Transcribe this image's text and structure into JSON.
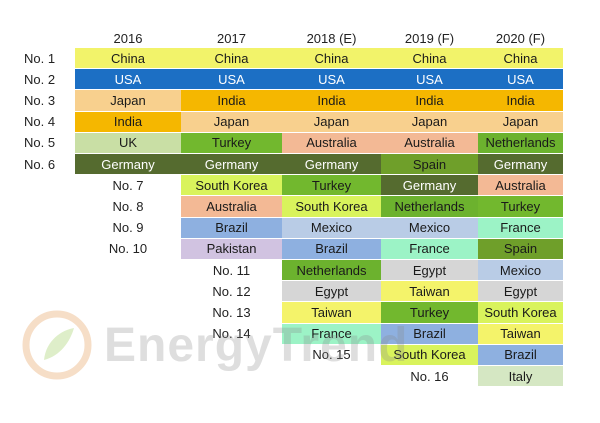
{
  "years": [
    "2016",
    "2017",
    "2018 (E)",
    "2019 (F)",
    "2020 (F)"
  ],
  "ranks": [
    "No. 1",
    "No. 2",
    "No. 3",
    "No. 4",
    "No. 5",
    "No. 6",
    "No. 7",
    "No. 8",
    "No. 9",
    "No. 10",
    "No. 11",
    "No. 12",
    "No. 13",
    "No. 14",
    "No. 15",
    "No. 16"
  ],
  "colors": {
    "China": "#f2f36a",
    "USA": "#1c6fc4",
    "Japan": "#f8d08e",
    "India": "#f5b700",
    "UK": "#c9dfa5",
    "Turkey": "#72b82e",
    "Australia": "#f3b995",
    "Netherlands": "#6cb22e",
    "Germany": "#556b2f",
    "Spain": "#6f9f2a",
    "South Korea": "#d9f35c",
    "Brazil": "#8eb0e0",
    "Mexico": "#b9cce6",
    "France": "#9cf3c6",
    "Pakistan": "#d1c3e1",
    "Egypt": "#d6d6d6",
    "Taiwan": "#f4f36a",
    "Italy": "#d5e7c3"
  },
  "columns": [
    [
      "China",
      "USA",
      "Japan",
      "India",
      "UK",
      "Germany"
    ],
    [
      "China",
      "USA",
      "India",
      "Japan",
      "Turkey",
      "Germany",
      "South Korea",
      "Australia",
      "Brazil",
      "Pakistan"
    ],
    [
      "China",
      "USA",
      "India",
      "Japan",
      "Australia",
      "Germany",
      "Turkey",
      "South Korea",
      "Mexico",
      "Brazil",
      "Netherlands",
      "Egypt",
      "Taiwan",
      "France"
    ],
    [
      "China",
      "USA",
      "India",
      "Japan",
      "Australia",
      "Spain",
      "Germany",
      "Netherlands",
      "Mexico",
      "France",
      "Egypt",
      "Taiwan",
      "Turkey",
      "Brazil",
      "South Korea"
    ],
    [
      "China",
      "USA",
      "India",
      "Japan",
      "Netherlands",
      "Germany",
      "Australia",
      "Turkey",
      "France",
      "Spain",
      "Mexico",
      "Egypt",
      "South Korea",
      "Taiwan",
      "Brazil",
      "Italy"
    ]
  ],
  "watermark": {
    "text": "EnergyTrend"
  }
}
